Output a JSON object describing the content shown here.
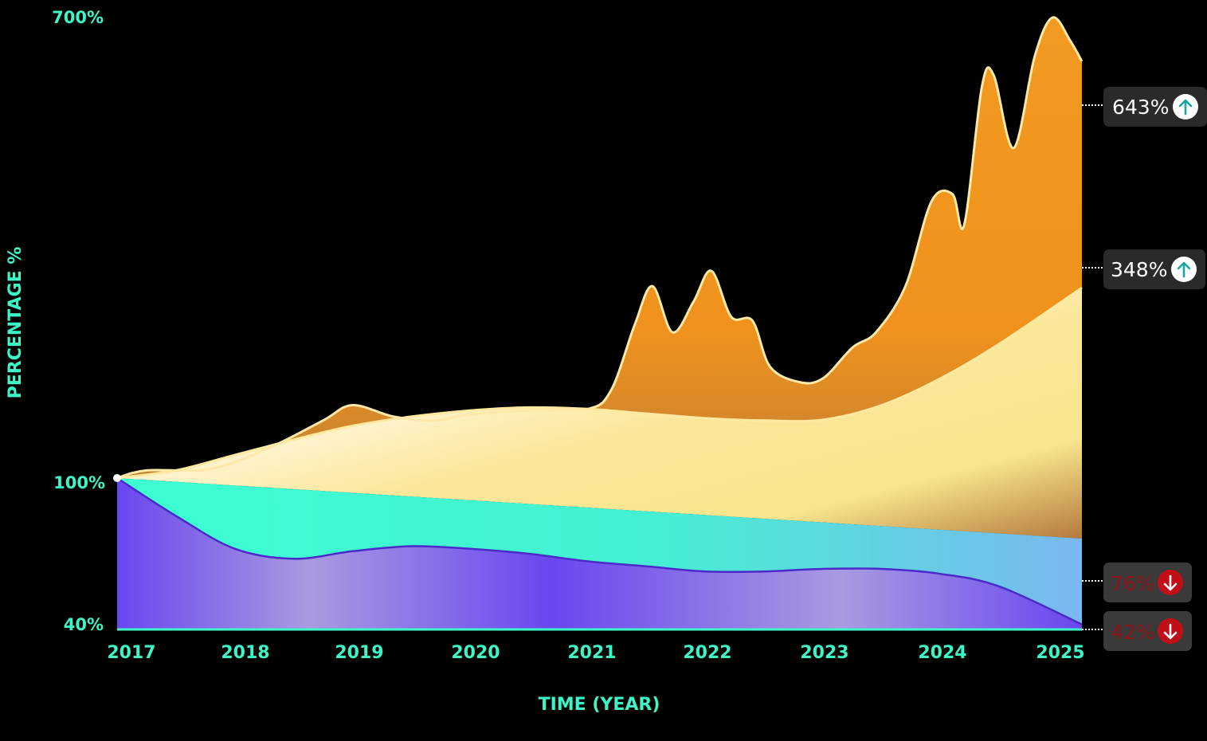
{
  "chart_data": {
    "type": "area",
    "xlabel": "TIME (YEAR)",
    "ylabel": "PERCENTAGE %",
    "x_ticks": [
      "2017",
      "2018",
      "2019",
      "2020",
      "2021",
      "2022",
      "2023",
      "2024",
      "2025"
    ],
    "y_ticks": [
      "700%",
      "100%",
      "40%"
    ],
    "series": [
      {
        "name": "orange",
        "color": "#f2921e",
        "end_value": "643%",
        "trend": "up",
        "points": [
          [
            2017.0,
            100
          ],
          [
            2017.25,
            110
          ],
          [
            2017.8,
            112
          ],
          [
            2018.3,
            140
          ],
          [
            2018.75,
            175
          ],
          [
            2019.0,
            195
          ],
          [
            2019.35,
            180
          ],
          [
            2019.7,
            175
          ],
          [
            2020.0,
            183
          ],
          [
            2020.5,
            188
          ],
          [
            2021.0,
            190
          ],
          [
            2021.2,
            215
          ],
          [
            2021.4,
            300
          ],
          [
            2021.55,
            350
          ],
          [
            2021.72,
            290
          ],
          [
            2021.9,
            330
          ],
          [
            2022.05,
            370
          ],
          [
            2022.22,
            310
          ],
          [
            2022.4,
            305
          ],
          [
            2022.55,
            245
          ],
          [
            2022.8,
            225
          ],
          [
            2023.0,
            230
          ],
          [
            2023.25,
            270
          ],
          [
            2023.45,
            290
          ],
          [
            2023.7,
            350
          ],
          [
            2023.92,
            460
          ],
          [
            2024.1,
            470
          ],
          [
            2024.2,
            430
          ],
          [
            2024.35,
            610
          ],
          [
            2024.45,
            625
          ],
          [
            2024.62,
            530
          ],
          [
            2024.8,
            650
          ],
          [
            2024.95,
            700
          ],
          [
            2025.1,
            670
          ],
          [
            2025.2,
            643
          ]
        ]
      },
      {
        "name": "yellow",
        "color": "#f7e27a",
        "end_value": "348%",
        "trend": "up",
        "points": [
          [
            2017.0,
            100
          ],
          [
            2017.5,
            110
          ],
          [
            2018.0,
            130
          ],
          [
            2018.5,
            150
          ],
          [
            2019.0,
            168
          ],
          [
            2019.5,
            180
          ],
          [
            2020.0,
            188
          ],
          [
            2020.5,
            192
          ],
          [
            2021.0,
            190
          ],
          [
            2021.5,
            184
          ],
          [
            2022.0,
            178
          ],
          [
            2022.5,
            175
          ],
          [
            2023.0,
            176
          ],
          [
            2023.5,
            195
          ],
          [
            2024.0,
            230
          ],
          [
            2024.5,
            275
          ],
          [
            2025.2,
            348
          ]
        ]
      },
      {
        "name": "teal",
        "color": "#3dffd4",
        "end_value": "76%",
        "trend": "down",
        "points": [
          [
            2017.0,
            100
          ],
          [
            2025.2,
            76
          ]
        ]
      },
      {
        "name": "purple",
        "color": "#6b4cf0",
        "end_value": "42%",
        "trend": "down",
        "points": [
          [
            2017.0,
            100
          ],
          [
            2017.5,
            85
          ],
          [
            2018.0,
            72
          ],
          [
            2018.5,
            68
          ],
          [
            2019.0,
            71
          ],
          [
            2019.5,
            73
          ],
          [
            2020.0,
            72
          ],
          [
            2020.5,
            70
          ],
          [
            2021.0,
            67
          ],
          [
            2021.5,
            65
          ],
          [
            2022.0,
            63
          ],
          [
            2022.5,
            63
          ],
          [
            2023.0,
            64
          ],
          [
            2023.5,
            64
          ],
          [
            2024.0,
            62
          ],
          [
            2024.5,
            57
          ],
          [
            2025.2,
            42
          ]
        ]
      }
    ]
  }
}
